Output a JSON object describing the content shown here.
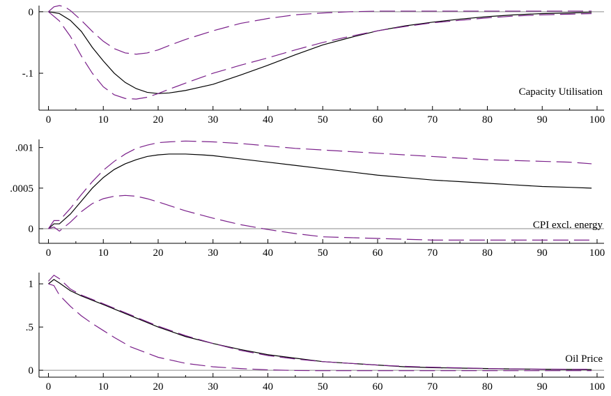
{
  "colors": {
    "response": "#000000",
    "band": "#7a1f8a",
    "zero_line": "#8a8a8a",
    "frame": "#000000"
  },
  "chart_data": [
    {
      "type": "line",
      "label": "Capacity Utilisation",
      "xlim": [
        0,
        100
      ],
      "ylim": [
        -0.16,
        0.01
      ],
      "x_ticks": [
        0,
        10,
        20,
        30,
        40,
        50,
        60,
        70,
        80,
        90,
        100
      ],
      "x_tick_labels": [
        "0",
        "10",
        "20",
        "30",
        "40",
        "50",
        "60",
        "70",
        "80",
        "90",
        "100"
      ],
      "y_ticks": [
        0,
        -0.1
      ],
      "y_tick_labels": [
        "0",
        "-.1"
      ],
      "zero_line": 0,
      "series": [
        {
          "role": "response",
          "style": "solid",
          "x": [
            0,
            2,
            4,
            6,
            8,
            10,
            12,
            14,
            16,
            18,
            20,
            22,
            25,
            30,
            35,
            40,
            45,
            50,
            55,
            60,
            65,
            70,
            75,
            80,
            85,
            90,
            95,
            99
          ],
          "y": [
            0,
            -0.003,
            -0.014,
            -0.032,
            -0.058,
            -0.08,
            -0.1,
            -0.115,
            -0.125,
            -0.131,
            -0.133,
            -0.132,
            -0.128,
            -0.118,
            -0.103,
            -0.087,
            -0.07,
            -0.054,
            -0.042,
            -0.031,
            -0.023,
            -0.017,
            -0.012,
            -0.008,
            -0.005,
            -0.003,
            -0.002,
            -0.001
          ]
        },
        {
          "role": "upper band",
          "style": "dashed",
          "x": [
            0,
            1,
            2,
            3,
            4,
            6,
            8,
            10,
            12,
            14,
            16,
            18,
            20,
            22,
            25,
            30,
            35,
            40,
            45,
            50,
            55,
            60,
            65,
            70,
            75,
            80,
            85,
            90,
            95,
            99
          ],
          "y": [
            0,
            0.008,
            0.01,
            0.008,
            0.002,
            -0.014,
            -0.032,
            -0.048,
            -0.06,
            -0.067,
            -0.069,
            -0.067,
            -0.062,
            -0.055,
            -0.045,
            -0.031,
            -0.019,
            -0.011,
            -0.005,
            -0.002,
            0,
            0.001,
            0.001,
            0.001,
            0.001,
            0.001,
            0.001,
            0.001,
            0.001,
            0.001
          ]
        },
        {
          "role": "lower band",
          "style": "dashed",
          "x": [
            0,
            2,
            4,
            6,
            8,
            10,
            12,
            14,
            16,
            18,
            20,
            22,
            25,
            30,
            35,
            40,
            45,
            50,
            55,
            60,
            65,
            70,
            75,
            80,
            85,
            90,
            95,
            99
          ],
          "y": [
            0,
            -0.015,
            -0.04,
            -0.072,
            -0.1,
            -0.122,
            -0.135,
            -0.141,
            -0.142,
            -0.139,
            -0.133,
            -0.126,
            -0.116,
            -0.1,
            -0.087,
            -0.075,
            -0.062,
            -0.05,
            -0.04,
            -0.031,
            -0.024,
            -0.018,
            -0.014,
            -0.01,
            -0.007,
            -0.005,
            -0.004,
            -0.003
          ]
        }
      ]
    },
    {
      "type": "line",
      "label": "CPI excl. energy",
      "xlim": [
        0,
        100
      ],
      "ylim": [
        -0.00018,
        0.0011
      ],
      "x_ticks": [
        0,
        10,
        20,
        30,
        40,
        50,
        60,
        70,
        80,
        90,
        100
      ],
      "x_tick_labels": [
        "0",
        "10",
        "20",
        "30",
        "40",
        "50",
        "60",
        "70",
        "80",
        "90",
        "100"
      ],
      "y_ticks": [
        0.001,
        0.0005,
        0
      ],
      "y_tick_labels": [
        ".001",
        ".0005",
        "0"
      ],
      "zero_line": 0,
      "series": [
        {
          "role": "response",
          "style": "solid",
          "x": [
            0,
            1,
            2,
            4,
            6,
            8,
            10,
            12,
            14,
            16,
            18,
            20,
            22,
            25,
            28,
            30,
            35,
            40,
            45,
            50,
            55,
            60,
            65,
            70,
            75,
            80,
            85,
            90,
            95,
            99
          ],
          "y": [
            0,
            6e-05,
            6e-05,
            0.00018,
            0.00034,
            0.0005,
            0.00063,
            0.00073,
            0.0008,
            0.00085,
            0.00089,
            0.00091,
            0.00092,
            0.00092,
            0.00091,
            0.0009,
            0.00086,
            0.00082,
            0.00078,
            0.00074,
            0.0007,
            0.00066,
            0.00063,
            0.0006,
            0.00058,
            0.00056,
            0.00054,
            0.00052,
            0.00051,
            0.0005
          ]
        },
        {
          "role": "upper band",
          "style": "dashed",
          "x": [
            0,
            1,
            2,
            4,
            6,
            8,
            10,
            12,
            14,
            16,
            18,
            20,
            22,
            25,
            30,
            35,
            40,
            45,
            50,
            55,
            60,
            65,
            70,
            75,
            80,
            85,
            90,
            95,
            99
          ],
          "y": [
            0,
            0.0001,
            0.0001,
            0.00025,
            0.00042,
            0.00058,
            0.00072,
            0.00083,
            0.00092,
            0.00099,
            0.00103,
            0.00106,
            0.00107,
            0.00108,
            0.00107,
            0.00105,
            0.00102,
            0.00099,
            0.00097,
            0.00095,
            0.00093,
            0.00091,
            0.00089,
            0.00087,
            0.00085,
            0.00084,
            0.00083,
            0.00082,
            0.0008
          ]
        },
        {
          "role": "lower band",
          "style": "dashed",
          "x": [
            0,
            1,
            2,
            4,
            6,
            8,
            10,
            12,
            14,
            16,
            18,
            20,
            25,
            30,
            35,
            40,
            45,
            50,
            55,
            60,
            65,
            70,
            75,
            80,
            85,
            90,
            95,
            99
          ],
          "y": [
            0,
            2e-05,
            -3e-05,
            8e-05,
            0.00021,
            0.00031,
            0.00037,
            0.0004,
            0.00041,
            0.0004,
            0.00037,
            0.00033,
            0.00022,
            0.00013,
            5e-05,
            -1e-05,
            -6e-05,
            -0.0001,
            -0.00011,
            -0.00012,
            -0.00013,
            -0.00014,
            -0.00014,
            -0.00014,
            -0.00014,
            -0.00014,
            -0.00014,
            -0.00014
          ]
        }
      ]
    },
    {
      "type": "line",
      "label": "Oil Price",
      "xlim": [
        0,
        100
      ],
      "ylim": [
        -0.08,
        1.13
      ],
      "x_ticks": [
        0,
        10,
        20,
        30,
        40,
        50,
        60,
        70,
        80,
        90,
        100
      ],
      "x_tick_labels": [
        "0",
        "10",
        "20",
        "30",
        "40",
        "50",
        "60",
        "70",
        "80",
        "90",
        "100"
      ],
      "y_ticks": [
        1,
        0.5,
        0
      ],
      "y_tick_labels": [
        "1",
        ".5",
        "0"
      ],
      "zero_line": 0,
      "series": [
        {
          "role": "response",
          "style": "solid",
          "x": [
            0,
            1,
            2,
            4,
            6,
            8,
            10,
            15,
            20,
            25,
            30,
            35,
            40,
            45,
            50,
            55,
            60,
            65,
            70,
            75,
            80,
            85,
            90,
            95,
            99
          ],
          "y": [
            1,
            1.05,
            1.01,
            0.92,
            0.86,
            0.81,
            0.76,
            0.63,
            0.5,
            0.39,
            0.31,
            0.24,
            0.18,
            0.14,
            0.1,
            0.08,
            0.06,
            0.04,
            0.03,
            0.025,
            0.02,
            0.015,
            0.012,
            0.01,
            0.008
          ]
        },
        {
          "role": "upper band",
          "style": "dashed",
          "x": [
            0,
            1,
            2,
            4,
            6,
            8,
            10,
            15,
            20,
            25,
            30,
            35,
            40,
            45,
            50,
            55,
            60,
            65,
            70,
            75,
            80,
            85,
            90,
            95,
            99
          ],
          "y": [
            1.03,
            1.1,
            1.06,
            0.94,
            0.87,
            0.82,
            0.77,
            0.64,
            0.51,
            0.4,
            0.31,
            0.23,
            0.17,
            0.13,
            0.1,
            0.08,
            0.06,
            0.045,
            0.035,
            0.028,
            0.02,
            0.015,
            0.013,
            0.012,
            0.012
          ]
        },
        {
          "role": "lower band",
          "style": "dashed",
          "x": [
            0,
            1,
            2,
            4,
            6,
            8,
            10,
            12,
            15,
            20,
            25,
            30,
            35,
            40,
            45,
            50,
            55,
            60,
            70,
            80,
            90,
            99
          ],
          "y": [
            1,
            0.98,
            0.87,
            0.74,
            0.63,
            0.54,
            0.46,
            0.38,
            0.27,
            0.15,
            0.08,
            0.04,
            0.02,
            0.005,
            -0.003,
            -0.005,
            -0.005,
            -0.005,
            -0.005,
            -0.005,
            -0.005,
            -0.005
          ]
        }
      ]
    }
  ]
}
